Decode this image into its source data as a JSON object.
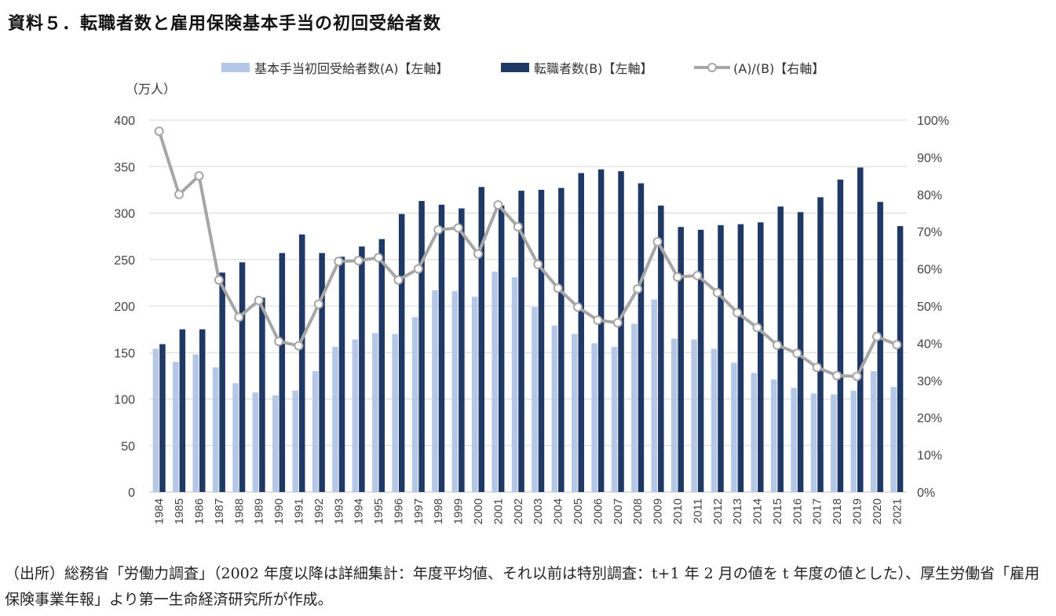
{
  "title": "資料５．転職者数と雇用保険基本手当の初回受給者数",
  "unit_label": "（万人）",
  "source_note": "（出所）総務省「労働力調査」（2002 年度以降は詳細集計：年度平均値、それ以前は特別調査：t+1 年 2 月の値を t 年度の値とした）、厚生労働省「雇用保険事業年報」より第一生命経済研究所が作成。",
  "legend": {
    "a": "基本手当初回受給者数(A)【左軸】",
    "b": "転職者数(B)【左軸】",
    "ratio": "(A)/(B)【右軸】"
  },
  "colors": {
    "a": "#b4c7e7",
    "b": "#203864",
    "ratio": "#a6a6a6",
    "grid": "#d9d9d9"
  },
  "chart_data": {
    "type": "bar",
    "categories": [
      "1984",
      "1985",
      "1986",
      "1987",
      "1988",
      "1989",
      "1990",
      "1991",
      "1992",
      "1993",
      "1994",
      "1995",
      "1996",
      "1997",
      "1998",
      "1999",
      "2000",
      "2001",
      "2002",
      "2003",
      "2004",
      "2005",
      "2006",
      "2007",
      "2008",
      "2009",
      "2010",
      "2011",
      "2012",
      "2013",
      "2014",
      "2015",
      "2016",
      "2017",
      "2018",
      "2019",
      "2020",
      "2021"
    ],
    "series": [
      {
        "name": "基本手当初回受給者数(A)【左軸】",
        "axis": "left",
        "type": "bar",
        "values": [
          154,
          140,
          148,
          134,
          117,
          107,
          104,
          109,
          130,
          156,
          164,
          171,
          170,
          188,
          217,
          216,
          210,
          237,
          231,
          199,
          179,
          170,
          160,
          156,
          181,
          207,
          165,
          164,
          154,
          139,
          128,
          121,
          112,
          106,
          105,
          109,
          130,
          113
        ]
      },
      {
        "name": "転職者数(B)【左軸】",
        "axis": "left",
        "type": "bar",
        "values": [
          159,
          175,
          175,
          236,
          247,
          209,
          257,
          277,
          257,
          253,
          264,
          272,
          299,
          313,
          309,
          305,
          328,
          308,
          324,
          325,
          327,
          343,
          347,
          345,
          332,
          308,
          285,
          282,
          287,
          288,
          290,
          307,
          301,
          317,
          336,
          349,
          312,
          286
        ]
      },
      {
        "name": "(A)/(B)【右軸】",
        "axis": "right",
        "type": "line",
        "values": [
          0.97,
          0.8,
          0.85,
          0.57,
          0.47,
          0.515,
          0.405,
          0.393,
          0.505,
          0.62,
          0.622,
          0.63,
          0.57,
          0.6,
          0.705,
          0.71,
          0.64,
          0.772,
          0.713,
          0.612,
          0.548,
          0.497,
          0.462,
          0.455,
          0.546,
          0.673,
          0.578,
          0.582,
          0.536,
          0.482,
          0.442,
          0.395,
          0.373,
          0.335,
          0.313,
          0.311,
          0.418,
          0.396
        ]
      }
    ],
    "y_left": {
      "min": 0,
      "max": 400,
      "ticks": [
        0,
        50,
        100,
        150,
        200,
        250,
        300,
        350,
        400
      ]
    },
    "y_right": {
      "min": 0,
      "max": 1,
      "ticks": [
        "0%",
        "10%",
        "20%",
        "30%",
        "40%",
        "50%",
        "60%",
        "70%",
        "80%",
        "90%",
        "100%"
      ]
    },
    "grid": true,
    "legend_position": "top"
  }
}
